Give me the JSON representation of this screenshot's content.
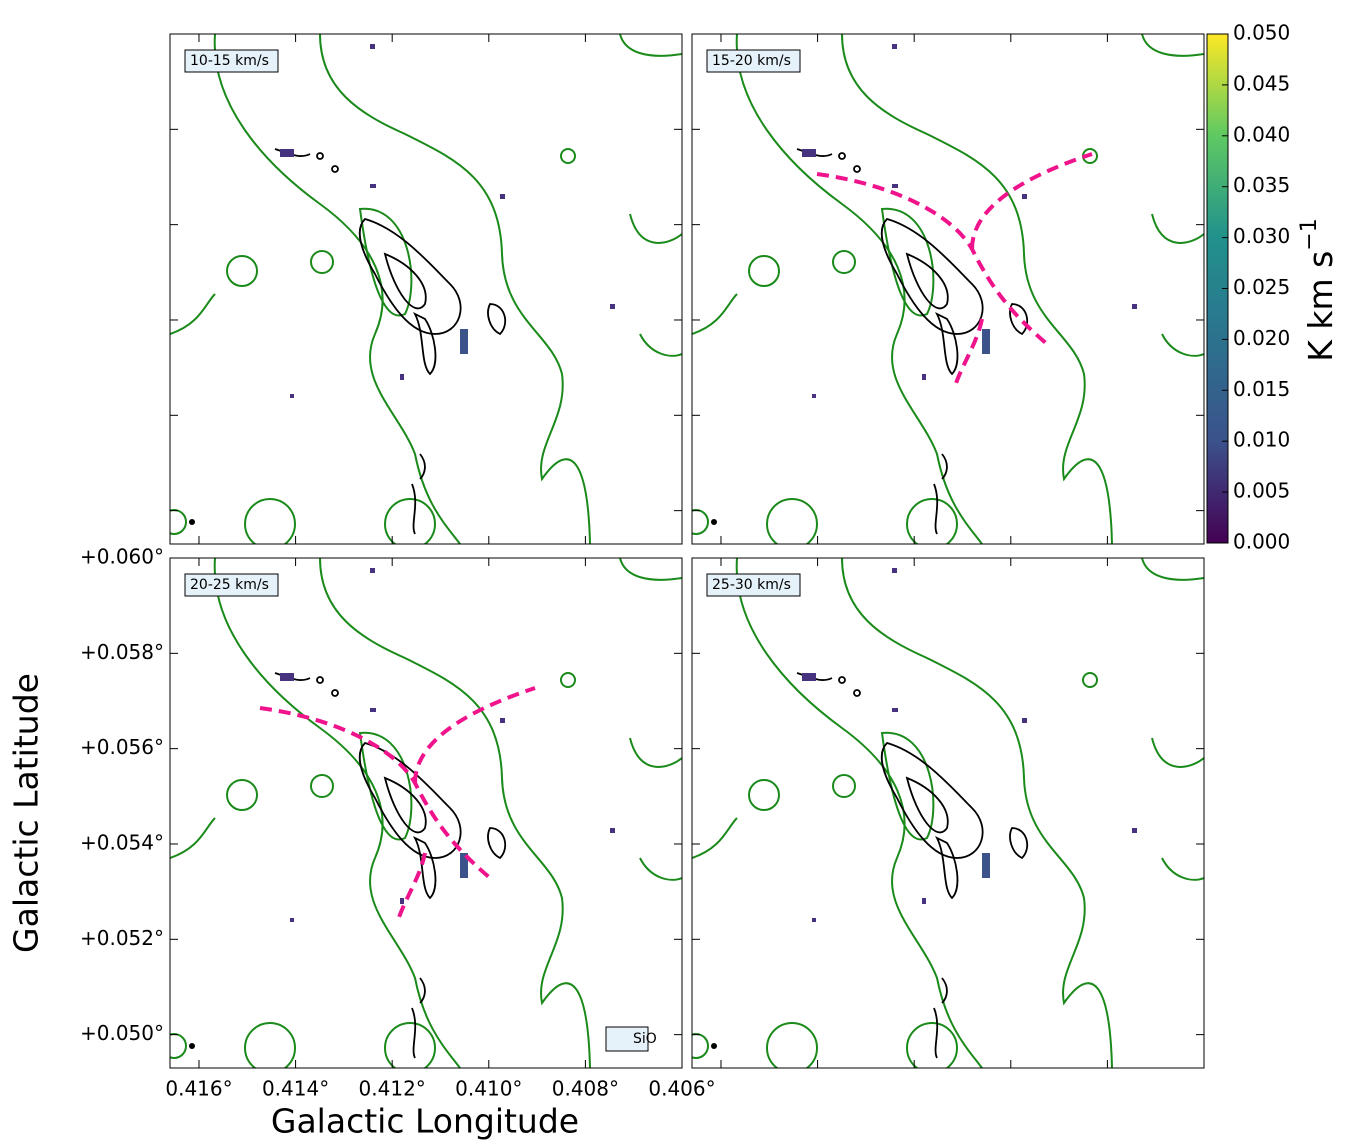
{
  "chart_data": {
    "type": "map",
    "xlabel": "Galactic Longitude",
    "ylabel": "Galactic Latitude",
    "xlim": [
      0.4166,
      0.406
    ],
    "ylim": [
      0.0493,
      0.06
    ],
    "xticks": [
      {
        "value": 0.416,
        "label": "0.416°"
      },
      {
        "value": 0.414,
        "label": "0.414°"
      },
      {
        "value": 0.412,
        "label": "0.412°"
      },
      {
        "value": 0.41,
        "label": "0.410°"
      },
      {
        "value": 0.408,
        "label": "0.408°"
      },
      {
        "value": 0.406,
        "label": "0.406°"
      }
    ],
    "yticks": [
      {
        "value": 0.05,
        "label": "+0.050°"
      },
      {
        "value": 0.052,
        "label": "+0.052°"
      },
      {
        "value": 0.054,
        "label": "+0.054°"
      },
      {
        "value": 0.056,
        "label": "+0.056°"
      },
      {
        "value": 0.058,
        "label": "+0.058°"
      },
      {
        "value": 0.06,
        "label": "+0.060°"
      }
    ],
    "panels": [
      {
        "label": "10-15 km/s"
      },
      {
        "label": "15-20 km/s"
      },
      {
        "label": "20-25 km/s",
        "annotation": "SiO"
      },
      {
        "label": "25-30 km/s"
      }
    ],
    "colorbar": {
      "label": "K km s",
      "label_exponent": "−1",
      "lim": [
        0,
        0.05
      ],
      "ticks": [
        {
          "value": 0,
          "label": "0.000"
        },
        {
          "value": 0.005,
          "label": "0.005"
        },
        {
          "value": 0.01,
          "label": "0.010"
        },
        {
          "value": 0.015,
          "label": "0.015"
        },
        {
          "value": 0.02,
          "label": "0.020"
        },
        {
          "value": 0.025,
          "label": "0.025"
        },
        {
          "value": 0.03,
          "label": "0.030"
        },
        {
          "value": 0.035,
          "label": "0.035"
        },
        {
          "value": 0.04,
          "label": "0.040"
        },
        {
          "value": 0.045,
          "label": "0.045"
        },
        {
          "value": 0.05,
          "label": "0.050"
        }
      ]
    }
  }
}
